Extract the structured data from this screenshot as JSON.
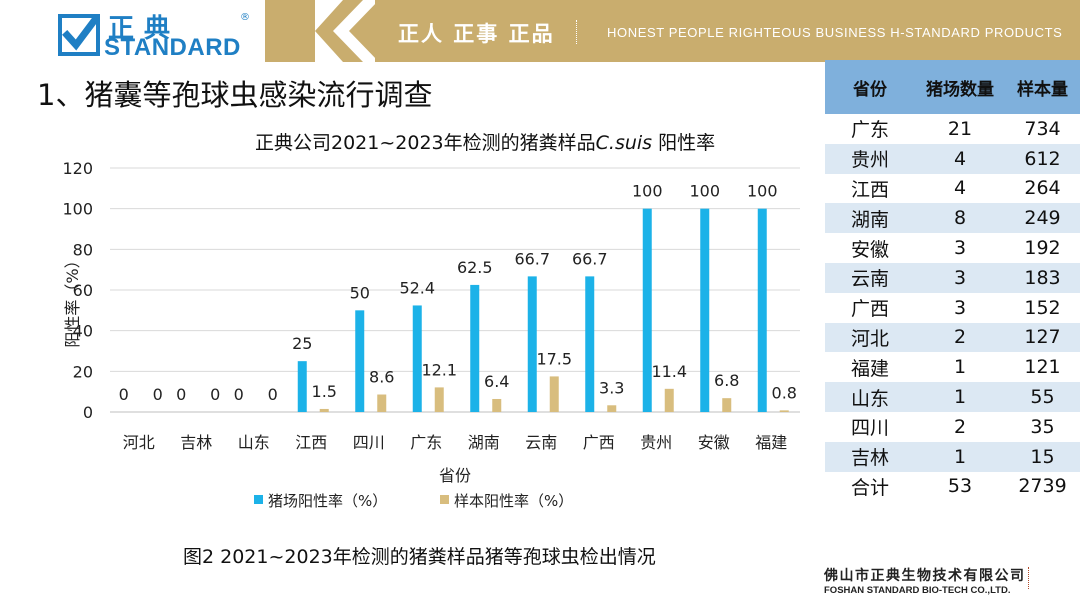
{
  "header": {
    "logo_cn": "正典",
    "logo_en": "STANDARD",
    "logo_reg": "®",
    "slogan_cn": "正人 正事 正品",
    "slogan_en": "HONEST PEOPLE RIGHTEOUS BUSINESS H-STANDARD PRODUCTS"
  },
  "page_title": "1、猪囊等孢球虫感染流行调查",
  "figure_caption": "图2  2021~2023年检测的猪粪样品猪等孢球虫检出情况",
  "colors": {
    "series1": "#1cb2e8",
    "series2": "#d8bd7e",
    "banner": "#c9ad6e",
    "brand": "#1f7fc4",
    "table_header": "#7fb0dc",
    "table_alt": "#dce8f3"
  },
  "chart_data": {
    "type": "bar",
    "title_prefix": "正典公司2021~2023年检测的猪粪样品",
    "title_italic": "C.suis",
    "title_suffix": " 阳性率",
    "categories": [
      "河北",
      "吉林",
      "山东",
      "江西",
      "四川",
      "广东",
      "湖南",
      "云南",
      "广西",
      "贵州",
      "安徽",
      "福建"
    ],
    "series": [
      {
        "name": "猪场阳性率（%）",
        "values": [
          0,
          0,
          0,
          25,
          50,
          52.4,
          62.5,
          66.7,
          66.7,
          100,
          100,
          100
        ],
        "labels": [
          "0",
          "0",
          "0",
          "25",
          "50",
          "52.4",
          "62.5",
          "66.7",
          "66.7",
          "100",
          "100",
          "100"
        ]
      },
      {
        "name": "样本阳性率（%）",
        "values": [
          0,
          0,
          0,
          1.5,
          8.6,
          12.1,
          6.4,
          17.5,
          3.3,
          11.4,
          6.8,
          0.8
        ],
        "labels": [
          "0",
          "0",
          "0",
          "1.5",
          "8.6",
          "12.1",
          "6.4",
          "17.5",
          "3.3",
          "11.4",
          "6.8",
          "0.8"
        ]
      }
    ],
    "xlabel": "省份",
    "ylabel": "阳性率（%）",
    "ylim": [
      0,
      120
    ],
    "yticks": [
      0,
      20,
      40,
      60,
      80,
      100,
      120
    ],
    "grid": true,
    "legend": "bottom"
  },
  "table": {
    "headers": [
      "省份",
      "猪场数量",
      "样本量"
    ],
    "rows": [
      [
        "广东",
        "21",
        "734"
      ],
      [
        "贵州",
        "4",
        "612"
      ],
      [
        "江西",
        "4",
        "264"
      ],
      [
        "湖南",
        "8",
        "249"
      ],
      [
        "安徽",
        "3",
        "192"
      ],
      [
        "云南",
        "3",
        "183"
      ],
      [
        "广西",
        "3",
        "152"
      ],
      [
        "河北",
        "2",
        "127"
      ],
      [
        "福建",
        "1",
        "121"
      ],
      [
        "山东",
        "1",
        "55"
      ],
      [
        "四川",
        "2",
        "35"
      ],
      [
        "吉林",
        "1",
        "15"
      ],
      [
        "合计",
        "53",
        "2739"
      ]
    ]
  },
  "footer": {
    "company_cn": "佛山市正典生物技术有限公司",
    "company_en": "FOSHAN STANDARD BIO-TECH CO.,LTD."
  }
}
